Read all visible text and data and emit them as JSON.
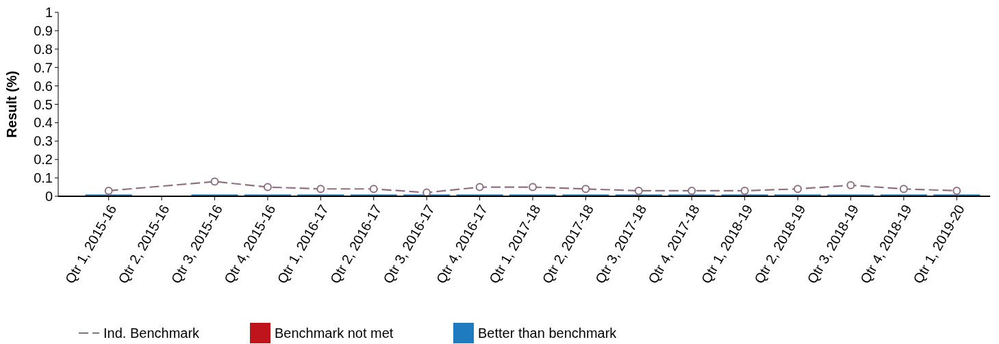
{
  "chart_data": {
    "type": "bar",
    "ylabel": "Result (%)",
    "categories": [
      "Qtr 1, 2015-16",
      "Qtr 2, 2015-16",
      "Qtr 3, 2015-16",
      "Qtr 4, 2015-16",
      "Qtr 1, 2016-17",
      "Qtr 2, 2016-17",
      "Qtr 3, 2016-17",
      "Qtr 4, 2016-17",
      "Qtr 1, 2017-18",
      "Qtr 2, 2017-18",
      "Qtr 3, 2017-18",
      "Qtr 4, 2017-18",
      "Qtr 1, 2018-19",
      "Qtr 2, 2018-19",
      "Qtr 3, 2018-19",
      "Qtr 4, 2018-19",
      "Qtr 1, 2019-20"
    ],
    "series": [
      {
        "name": "Ind. Benchmark",
        "type": "line",
        "color": "#8f7080",
        "line_style": "dashed",
        "marker": "circle",
        "values": [
          0.03,
          null,
          0.08,
          0.05,
          0.04,
          0.04,
          0.02,
          0.05,
          0.05,
          0.04,
          0.03,
          0.03,
          0.03,
          0.04,
          0.06,
          0.04,
          0.03
        ]
      },
      {
        "name": "Benchmark not met",
        "color": "#c0141c",
        "values": [
          null,
          null,
          null,
          null,
          null,
          null,
          null,
          null,
          null,
          null,
          null,
          null,
          null,
          null,
          null,
          null,
          null
        ]
      },
      {
        "name": "Better than benchmark",
        "color": "#1f7bbf",
        "values": [
          0.01,
          null,
          0.01,
          0.01,
          0.01,
          0.01,
          0.01,
          0.01,
          0.01,
          0.01,
          0.01,
          0.01,
          0.01,
          0.01,
          0.01,
          0.01,
          0.01
        ]
      }
    ],
    "ylim": [
      0,
      1
    ],
    "yticks": [
      0,
      0.1,
      0.2,
      0.3,
      0.4,
      0.5,
      0.6,
      0.7,
      0.8,
      0.9,
      1
    ],
    "legend": "bottom"
  }
}
